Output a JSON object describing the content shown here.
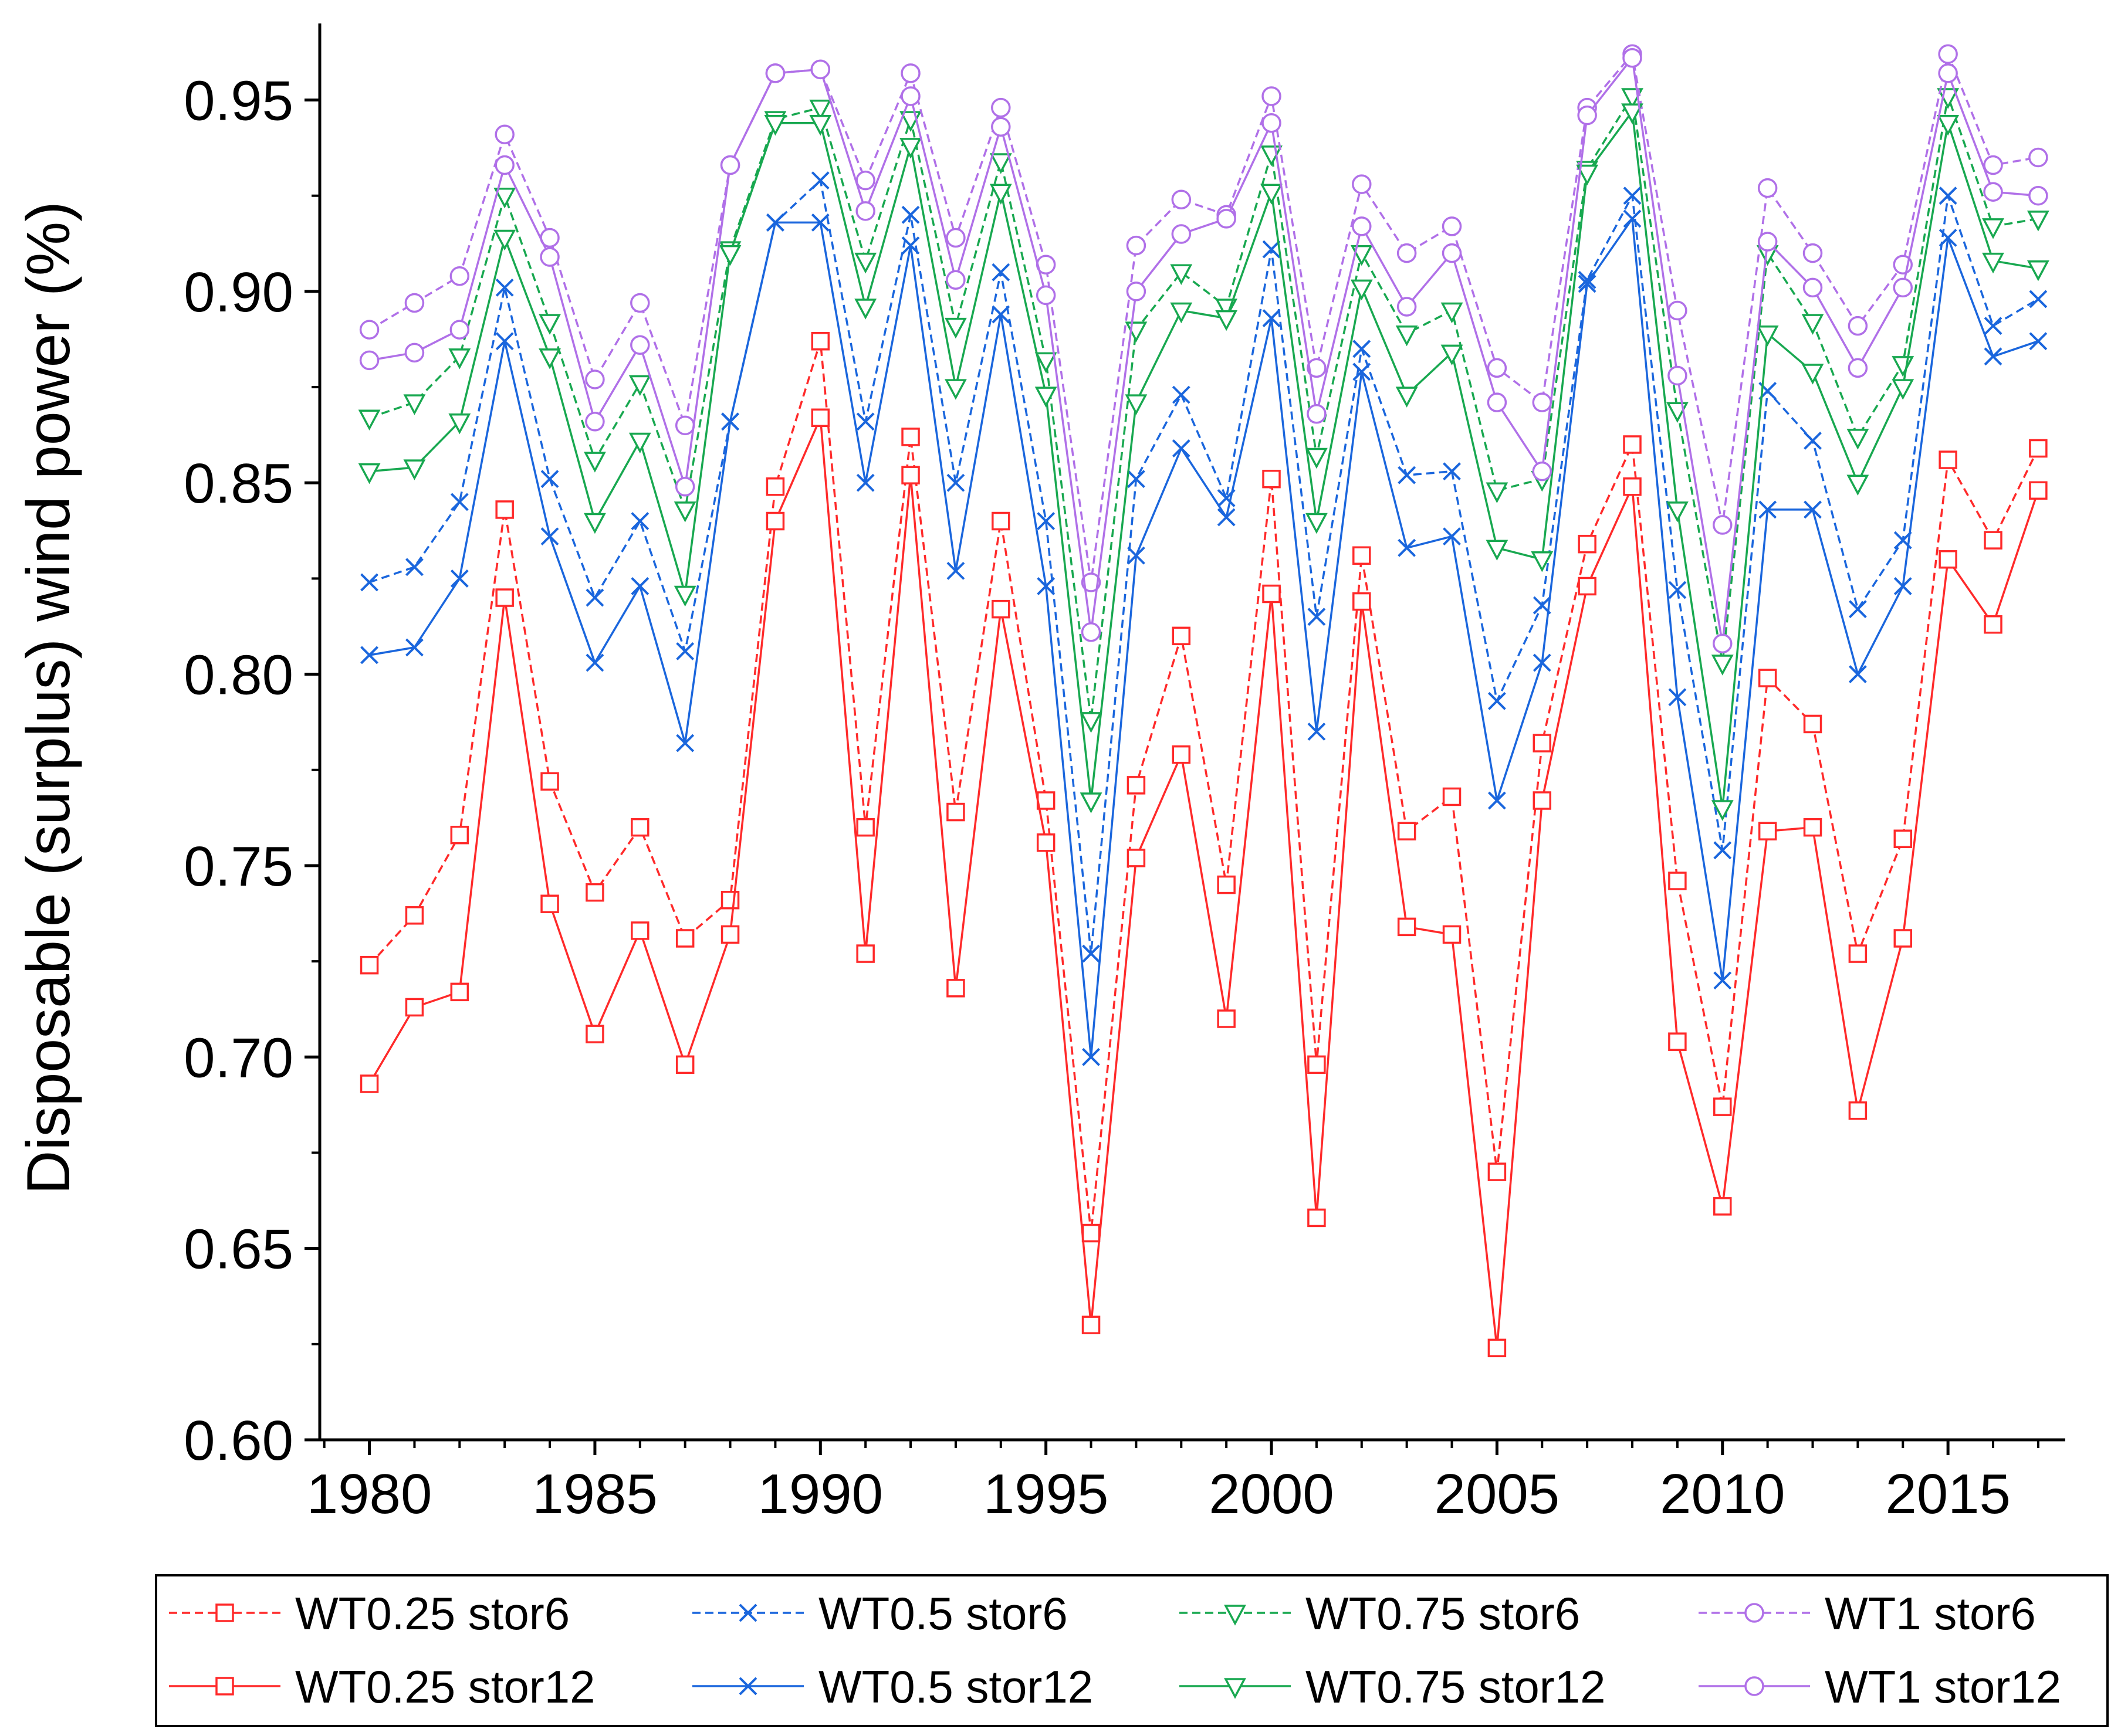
{
  "chart_data": {
    "type": "line",
    "title": "",
    "xlabel": "",
    "ylabel": "Disposable (surplus) wind power (%)",
    "xlim": [
      1978.9,
      2017.6
    ],
    "ylim": [
      0.6,
      0.97
    ],
    "x_ticks": [
      1980,
      1985,
      1990,
      1995,
      2000,
      2005,
      2010,
      2015
    ],
    "x_tick_labels": [
      "1980",
      "1985",
      "1990",
      "1995",
      "2000",
      "2005",
      "2010",
      "2015"
    ],
    "y_ticks": [
      0.6,
      0.65,
      0.7,
      0.75,
      0.8,
      0.85,
      0.9,
      0.95
    ],
    "y_tick_labels": [
      "0.60",
      "0.65",
      "0.70",
      "0.75",
      "0.80",
      "0.85",
      "0.90",
      "0.95"
    ],
    "grid": false,
    "legend_position": "bottom",
    "x": [
      1980,
      1981,
      1982,
      1983,
      1984,
      1985,
      1986,
      1987,
      1988,
      1989,
      1990,
      1991,
      1992,
      1993,
      1994,
      1995,
      1996,
      1997,
      1998,
      1999,
      2000,
      2001,
      2002,
      2003,
      2004,
      2005,
      2006,
      2007,
      2008,
      2009,
      2010,
      2011,
      2012,
      2013,
      2014,
      2015,
      2016,
      2017
    ],
    "series": [
      {
        "name": "WT0.25 stor6",
        "color": "#ff2a2a",
        "dash": "dashed",
        "marker": "square",
        "values": [
          0.724,
          0.737,
          0.758,
          0.843,
          0.772,
          0.743,
          0.76,
          0.731,
          0.741,
          0.849,
          0.887,
          0.76,
          0.862,
          0.764,
          0.84,
          0.767,
          0.654,
          0.771,
          0.81,
          0.745,
          0.851,
          0.698,
          0.831,
          0.759,
          0.768,
          0.67,
          0.782,
          0.834,
          0.86,
          0.746,
          0.687,
          0.799,
          0.787,
          0.727,
          0.757,
          0.856,
          0.835,
          0.859
        ]
      },
      {
        "name": "WT0.5 stor6",
        "color": "#1a66dd",
        "dash": "dashed",
        "marker": "x",
        "values": [
          0.824,
          0.828,
          0.845,
          0.901,
          0.851,
          0.82,
          0.84,
          0.806,
          0.866,
          0.918,
          0.929,
          0.866,
          0.92,
          0.85,
          0.905,
          0.84,
          0.727,
          0.851,
          0.873,
          0.846,
          0.911,
          0.815,
          0.885,
          0.852,
          0.853,
          0.793,
          0.818,
          0.903,
          0.925,
          0.822,
          0.754,
          0.874,
          0.861,
          0.817,
          0.835,
          0.925,
          0.891,
          0.898
        ]
      },
      {
        "name": "WT0.75 stor6",
        "color": "#18a850",
        "dash": "dashed",
        "marker": "triangle-down",
        "values": [
          0.867,
          0.871,
          0.883,
          0.925,
          0.892,
          0.856,
          0.876,
          0.843,
          0.911,
          0.945,
          0.948,
          0.908,
          0.945,
          0.891,
          0.934,
          0.882,
          0.788,
          0.89,
          0.905,
          0.896,
          0.936,
          0.857,
          0.91,
          0.889,
          0.895,
          0.848,
          0.851,
          0.932,
          0.951,
          0.869,
          0.803,
          0.91,
          0.892,
          0.862,
          0.881,
          0.951,
          0.917,
          0.919
        ]
      },
      {
        "name": "WT1 stor6",
        "color": "#b070e8",
        "dash": "dashed",
        "marker": "circle",
        "values": [
          0.89,
          0.897,
          0.904,
          0.941,
          0.914,
          0.877,
          0.897,
          0.865,
          0.933,
          0.957,
          0.958,
          0.929,
          0.957,
          0.914,
          0.948,
          0.907,
          0.824,
          0.912,
          0.924,
          0.92,
          0.951,
          0.88,
          0.928,
          0.91,
          0.917,
          0.88,
          0.871,
          0.948,
          0.962,
          0.895,
          0.839,
          0.927,
          0.91,
          0.891,
          0.907,
          0.962,
          0.933,
          0.935
        ]
      },
      {
        "name": "WT0.25 stor12",
        "color": "#ff2a2a",
        "dash": "solid",
        "marker": "square",
        "values": [
          0.693,
          0.713,
          0.717,
          0.82,
          0.74,
          0.706,
          0.733,
          0.698,
          0.732,
          0.84,
          0.867,
          0.727,
          0.852,
          0.718,
          0.817,
          0.756,
          0.63,
          0.752,
          0.779,
          0.71,
          0.821,
          0.658,
          0.819,
          0.734,
          0.732,
          0.624,
          0.767,
          0.823,
          0.849,
          0.704,
          0.661,
          0.759,
          0.76,
          0.686,
          0.731,
          0.83,
          0.813,
          0.848
        ]
      },
      {
        "name": "WT0.5 stor12",
        "color": "#1a66dd",
        "dash": "solid",
        "marker": "x",
        "values": [
          0.805,
          0.807,
          0.825,
          0.887,
          0.836,
          0.803,
          0.823,
          0.782,
          0.866,
          0.918,
          0.918,
          0.85,
          0.912,
          0.827,
          0.894,
          0.823,
          0.7,
          0.831,
          0.859,
          0.841,
          0.893,
          0.785,
          0.879,
          0.833,
          0.836,
          0.767,
          0.803,
          0.902,
          0.919,
          0.794,
          0.72,
          0.843,
          0.843,
          0.8,
          0.823,
          0.914,
          0.883,
          0.887
        ]
      },
      {
        "name": "WT0.75 stor12",
        "color": "#18a850",
        "dash": "solid",
        "marker": "triangle-down",
        "values": [
          0.853,
          0.854,
          0.866,
          0.914,
          0.883,
          0.84,
          0.861,
          0.821,
          0.91,
          0.944,
          0.944,
          0.896,
          0.938,
          0.875,
          0.926,
          0.873,
          0.767,
          0.871,
          0.895,
          0.893,
          0.926,
          0.84,
          0.901,
          0.873,
          0.884,
          0.833,
          0.83,
          0.931,
          0.947,
          0.843,
          0.765,
          0.889,
          0.879,
          0.85,
          0.875,
          0.944,
          0.908,
          0.906
        ]
      },
      {
        "name": "WT1 stor12",
        "color": "#b070e8",
        "dash": "solid",
        "marker": "circle",
        "values": [
          0.882,
          0.884,
          0.89,
          0.933,
          0.909,
          0.866,
          0.886,
          0.849,
          0.933,
          0.957,
          0.958,
          0.921,
          0.951,
          0.903,
          0.943,
          0.899,
          0.811,
          0.9,
          0.915,
          0.919,
          0.944,
          0.868,
          0.917,
          0.896,
          0.91,
          0.871,
          0.853,
          0.946,
          0.961,
          0.878,
          0.808,
          0.913,
          0.901,
          0.88,
          0.901,
          0.957,
          0.926,
          0.925
        ]
      }
    ]
  }
}
